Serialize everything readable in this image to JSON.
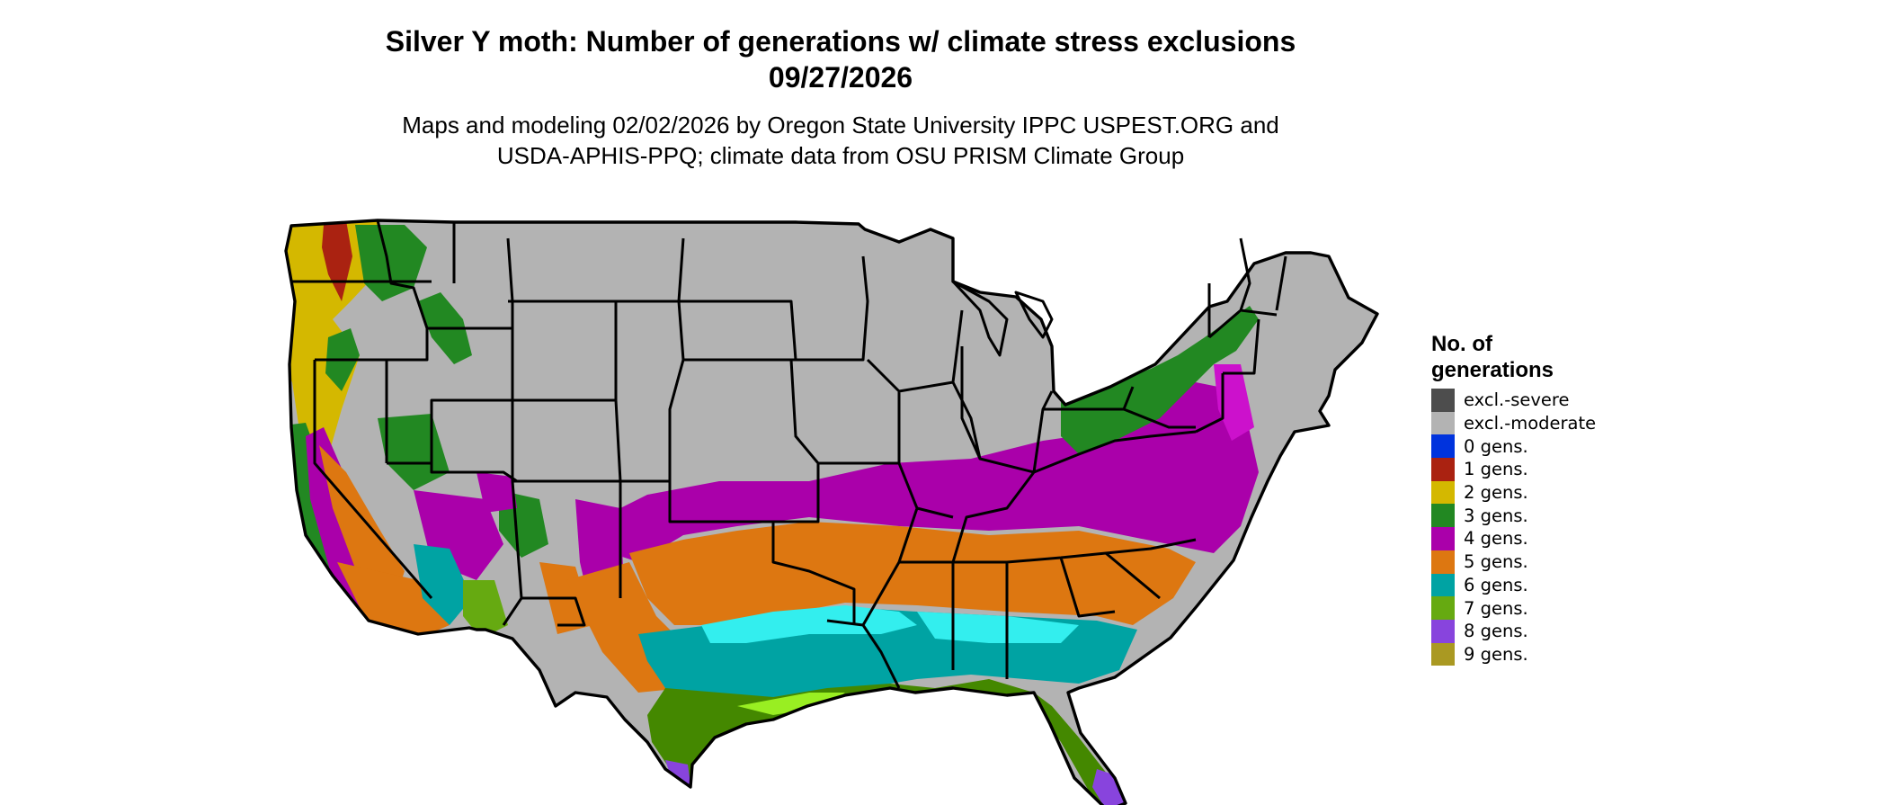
{
  "title_line1": "Silver Y moth: Number of generations w/ climate stress exclusions",
  "title_line2": "09/27/2026",
  "subtitle_line1": "Maps and modeling 02/02/2026 by Oregon State University IPPC USPEST.ORG and",
  "subtitle_line2": "USDA-APHIS-PPQ; climate data from OSU PRISM Climate Group",
  "legend": {
    "title": "No. of generations",
    "items": [
      {
        "label": "excl.-severe",
        "color": "#4d4d4d"
      },
      {
        "label": "excl.-moderate",
        "color": "#b3b3b3"
      },
      {
        "label": "0 gens.",
        "color": "#0033dd"
      },
      {
        "label": "1 gens.",
        "color": "#aa2211"
      },
      {
        "label": "2 gens.",
        "color": "#d4b800"
      },
      {
        "label": "3 gens.",
        "color": "#228822"
      },
      {
        "label": "4 gens.",
        "color": "#aa00aa"
      },
      {
        "label": "5 gens.",
        "color": "#dd7711"
      },
      {
        "label": "6 gens.",
        "color": "#00a3a3"
      },
      {
        "label": "7 gens.",
        "color": "#66aa11"
      },
      {
        "label": "8 gens.",
        "color": "#8844dd"
      },
      {
        "label": "9 gens.",
        "color": "#aa9922"
      }
    ]
  },
  "map": {
    "region": "contiguous-united-states",
    "boundaries": "state-borders"
  }
}
